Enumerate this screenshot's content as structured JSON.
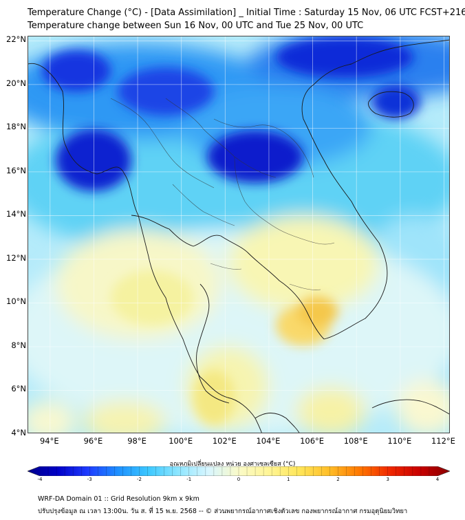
{
  "header": {
    "title_line1": "Temperature Change (°C) - [Data Assimilation] _ Initial Time : Saturday 15 Nov, 06 UTC FCST+216",
    "title_line2": "Temperature change between Sun 16 Nov, 00 UTC and Tue 25 Nov, 00 UTC"
  },
  "map": {
    "lat_labels": [
      "22°N",
      "20°N",
      "18°N",
      "16°N",
      "14°N",
      "12°N",
      "10°N",
      "8°N",
      "6°N",
      "4°N"
    ],
    "lon_labels": [
      "94°E",
      "96°E",
      "98°E",
      "100°E",
      "102°E",
      "104°E",
      "106°E",
      "108°E",
      "110°E",
      "112°E"
    ],
    "lat_range": [
      4,
      22.2
    ],
    "lon_range": [
      93,
      112.3
    ],
    "grid": true
  },
  "colorbar": {
    "title": "อุณหภูมิเปลี่ยนแปลง หน่วย องศาเซลเซียส (°C)",
    "ticks": [
      "-4",
      "-3",
      "-2",
      "-1",
      "0",
      "1",
      "2",
      "3",
      "4"
    ],
    "range": [
      -4,
      4
    ],
    "colors": [
      "#00008b",
      "#0000c8",
      "#1e3cff",
      "#1e90ff",
      "#3cc8ff",
      "#8ee6ff",
      "#d8f6ff",
      "#fafac8",
      "#fff596",
      "#ffe65a",
      "#ffbe28",
      "#ff7800",
      "#f02800",
      "#c80000",
      "#8b0000"
    ]
  },
  "footer": {
    "line1": "WRF-DA Domain 01 :: Grid Resolution 9km x 9km",
    "line2": "ปรับปรุงข้อมูล ณ เวลา 13:00น. วัน ส. ที่ 15 พ.ย. 2568 -- © ส่วนพยากรณ์อากาศเชิงตัวเลข กองพยากรณ์อากาศ กรมอุตุนิยมวิทยา"
  }
}
